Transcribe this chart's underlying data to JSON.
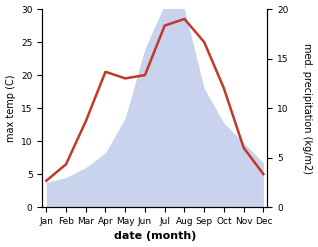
{
  "months": [
    "Jan",
    "Feb",
    "Mar",
    "Apr",
    "May",
    "Jun",
    "Jul",
    "Aug",
    "Sep",
    "Oct",
    "Nov",
    "Dec"
  ],
  "month_positions": [
    0,
    1,
    2,
    3,
    4,
    5,
    6,
    7,
    8,
    9,
    10,
    11
  ],
  "temperature": [
    4.0,
    6.5,
    13.0,
    20.5,
    19.5,
    20.0,
    27.5,
    28.5,
    25.0,
    18.0,
    9.0,
    5.0
  ],
  "precipitation": [
    2.5,
    3.0,
    4.0,
    5.5,
    9.0,
    16.0,
    20.5,
    20.0,
    12.0,
    8.5,
    6.5,
    4.5
  ],
  "temp_color": "#c0392b",
  "precip_color": "#b8c5e8",
  "ylabel_left": "max temp (C)",
  "ylabel_right": "med. precipitation (kg/m2)",
  "xlabel": "date (month)",
  "ylim_left": [
    0,
    30
  ],
  "ylim_right": [
    0,
    20
  ],
  "temp_linewidth": 1.8,
  "background_color": "#ffffff",
  "yticks_left": [
    0,
    5,
    10,
    15,
    20,
    25,
    30
  ],
  "yticks_right": [
    0,
    5,
    10,
    15,
    20
  ],
  "xlabel_fontsize": 8,
  "ylabel_fontsize": 7,
  "tick_fontsize": 6.5
}
